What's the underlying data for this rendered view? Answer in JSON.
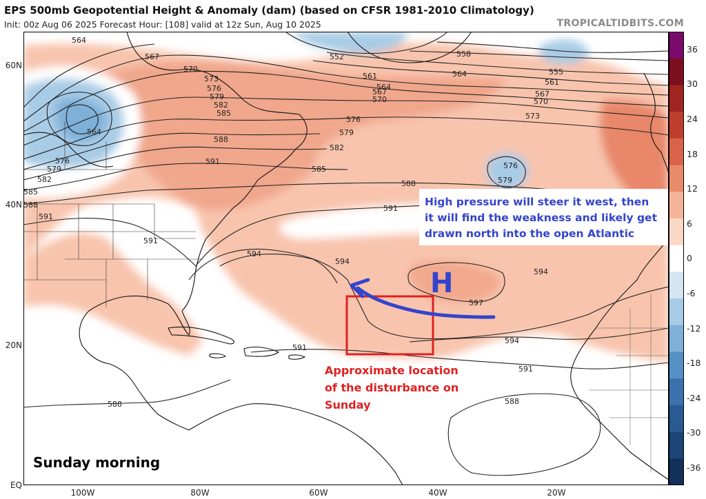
{
  "header": {
    "title": "EPS 500mb Geopotential Height & Anomaly (dam) (based on CFSR 1981-2010 Climatology)",
    "subtitle": "Init: 00z Aug 06 2025   Forecast Hour: [108]   valid at 12z Sun, Aug 10 2025",
    "credit": "TROPICALTIDBITS.COM"
  },
  "axes": {
    "latitudes": [
      "60N",
      "40N",
      "20N",
      "EQ"
    ],
    "longitudes": [
      "100W",
      "80W",
      "60W",
      "40W",
      "20W"
    ]
  },
  "colorbar": {
    "ticks": [
      "36",
      "30",
      "24",
      "18",
      "12",
      "6",
      "0",
      "-6",
      "-12",
      "-18",
      "-24",
      "-30",
      "-36"
    ],
    "colors": [
      "#7a0a6b",
      "#7d1020",
      "#a0241f",
      "#bf3f2f",
      "#d8634a",
      "#e88a6c",
      "#f5b59b",
      "#fbd7c5",
      "#ffffff",
      "#d4e6f2",
      "#a9cce6",
      "#7fb0d8",
      "#5691c6",
      "#3b72ad",
      "#2a5a92",
      "#1d4577",
      "#12305a"
    ]
  },
  "contour_labels": [
    "552",
    "555",
    "558",
    "561",
    "564",
    "567",
    "570",
    "573",
    "576",
    "579",
    "582",
    "585",
    "588",
    "591",
    "594",
    "597"
  ],
  "contours": {
    "upper": [
      "564",
      "567",
      "570",
      "573",
      "576",
      "579",
      "582",
      "585",
      "588",
      "591"
    ],
    "bottom_left": [
      "576",
      "579",
      "582",
      "585",
      "588",
      "591"
    ],
    "central": [
      "552",
      "561",
      "564",
      "567",
      "570",
      "576",
      "579",
      "582",
      "585",
      "588"
    ],
    "right": [
      "555",
      "561",
      "564",
      "567",
      "570",
      "573"
    ],
    "lows": [
      "564",
      "576",
      "579"
    ],
    "subtropical": [
      "591",
      "594",
      "597"
    ],
    "south": [
      "591",
      "588"
    ]
  },
  "annotations": {
    "high_symbol": "H",
    "steer_text_lines": [
      "High pressure will steer it west, then",
      "it will find the weakness and likely get",
      "drawn north into the open Atlantic"
    ],
    "disturbance_text_lines": [
      "Approximate location",
      "of the disturbance on",
      "Sunday"
    ],
    "time_label": "Sunday morning",
    "blue_color": "#3344cc",
    "red_color": "#e02020"
  }
}
